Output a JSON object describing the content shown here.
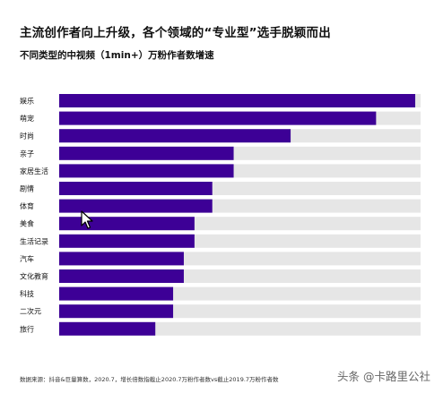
{
  "title": "主流创作者向上升级，各个领域的“专业型”选手脱颖而出",
  "subtitle": "不同类型的中视频（1min+）万粉作者数增速",
  "source": "数据来源：抖音&巨量算数，2020.7，增长倍数指截止2020.7万粉作者数vs截止2019.7万粉作者数",
  "watermark": "头条 @卡路里公社",
  "colors": {
    "bar": "#3d0096",
    "track": "#e6e6e6"
  },
  "chart_data": {
    "type": "bar",
    "orientation": "horizontal",
    "categories": [
      "娱乐",
      "萌宠",
      "时尚",
      "亲子",
      "家居生活",
      "剧情",
      "体育",
      "美食",
      "生活记录",
      "汽车",
      "文化教育",
      "科技",
      "二次元",
      "旅行"
    ],
    "values": [
      100,
      89,
      65,
      49,
      49,
      43,
      43,
      38,
      38,
      35,
      35,
      32,
      32,
      27
    ],
    "xlim": [
      0,
      101.5
    ],
    "value_scale": "relative to the longest bar (娱乐 = 100); axis not printed",
    "title": "不同类型的中视频（1min+）万粉作者数增速",
    "xlabel": "",
    "ylabel": "",
    "grid": false,
    "legend": "none"
  }
}
